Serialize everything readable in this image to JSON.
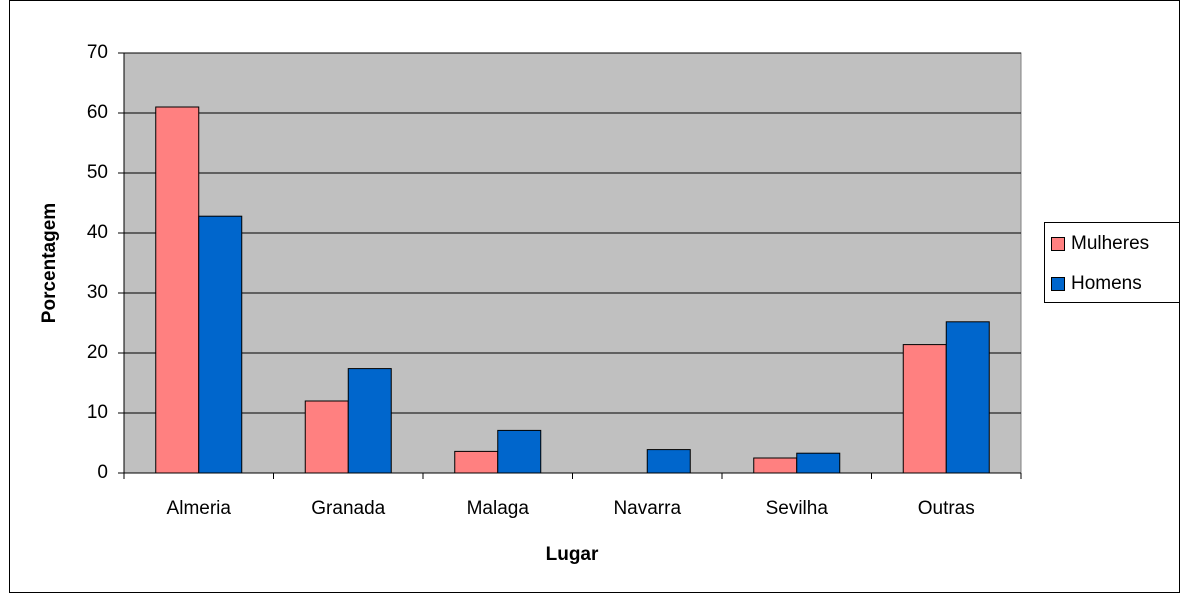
{
  "chart_data": {
    "type": "bar",
    "x_label": "Lugar",
    "y_label": "Porcentagem",
    "categories": [
      "Almeria",
      "Granada",
      "Malaga",
      "Navarra",
      "Sevilha",
      "Outras"
    ],
    "series": [
      {
        "name": "Mulheres",
        "color": "#ff8080",
        "values": [
          61,
          12,
          3.6,
          0,
          2.5,
          21.4
        ]
      },
      {
        "name": "Homens",
        "color": "#0066cc",
        "values": [
          42.8,
          17.4,
          7.1,
          3.9,
          3.3,
          25.2
        ]
      }
    ],
    "ylim": [
      0,
      70
    ],
    "yticks": [
      0,
      10,
      20,
      30,
      40,
      50,
      60,
      70
    ],
    "grid": true,
    "legend": "right"
  }
}
